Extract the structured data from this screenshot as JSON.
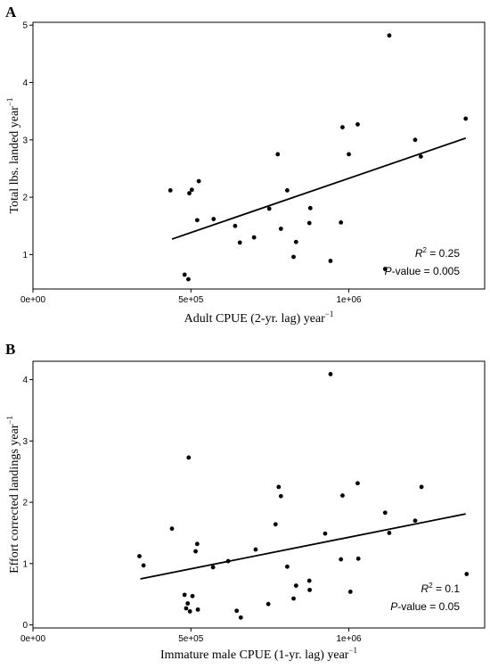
{
  "chart_data": [
    {
      "type": "scatter",
      "panel_label": "A",
      "xlabel": "Adult CPUE (2-yr. lag) year",
      "xlabel_sup": "−1",
      "ylabel": "Total lbs. landed year",
      "ylabel_sup": "−1",
      "xlim": [
        0,
        1430000
      ],
      "ylim": [
        0.4,
        5.05
      ],
      "x_ticks": [
        {
          "value": 0,
          "label": "0e+00"
        },
        {
          "value": 500000,
          "label": "5e+05"
        },
        {
          "value": 1000000,
          "label": "1e+06"
        }
      ],
      "y_ticks": [
        {
          "value": 1,
          "label": "1"
        },
        {
          "value": 2,
          "label": "2"
        },
        {
          "value": 3,
          "label": "3"
        },
        {
          "value": 4,
          "label": "4"
        },
        {
          "value": 5,
          "label": "5"
        }
      ],
      "annotation": {
        "r2_label": "R",
        "r2_sup": "2",
        "r2_value": " = 0.25",
        "p_label": "P",
        "p_value": "-value = 0.005"
      },
      "fit_line": {
        "x": [
          440000,
          1370000
        ],
        "y": [
          1.27,
          3.03
        ]
      },
      "points": [
        {
          "x": 435000,
          "y": 2.12
        },
        {
          "x": 480000,
          "y": 0.65
        },
        {
          "x": 492000,
          "y": 0.57
        },
        {
          "x": 495000,
          "y": 2.07
        },
        {
          "x": 503000,
          "y": 2.13
        },
        {
          "x": 520000,
          "y": 1.6
        },
        {
          "x": 525000,
          "y": 2.28
        },
        {
          "x": 572000,
          "y": 1.62
        },
        {
          "x": 640000,
          "y": 1.5
        },
        {
          "x": 655000,
          "y": 1.21
        },
        {
          "x": 700000,
          "y": 1.3
        },
        {
          "x": 748000,
          "y": 1.8
        },
        {
          "x": 775000,
          "y": 2.75
        },
        {
          "x": 785000,
          "y": 1.45
        },
        {
          "x": 805000,
          "y": 2.12
        },
        {
          "x": 825000,
          "y": 0.96
        },
        {
          "x": 833000,
          "y": 1.22
        },
        {
          "x": 875000,
          "y": 1.55
        },
        {
          "x": 878000,
          "y": 1.81
        },
        {
          "x": 942000,
          "y": 0.89
        },
        {
          "x": 975000,
          "y": 1.56
        },
        {
          "x": 980000,
          "y": 3.22
        },
        {
          "x": 1000000,
          "y": 2.75
        },
        {
          "x": 1028000,
          "y": 3.27
        },
        {
          "x": 1115000,
          "y": 0.75
        },
        {
          "x": 1128000,
          "y": 4.82
        },
        {
          "x": 1210000,
          "y": 3.0
        },
        {
          "x": 1228000,
          "y": 2.71
        },
        {
          "x": 1370000,
          "y": 3.37
        }
      ]
    },
    {
      "type": "scatter",
      "panel_label": "B",
      "xlabel": "Immature male CPUE (1-yr. lag) year",
      "xlabel_sup": "−1",
      "ylabel": "Effort corrected landings year",
      "ylabel_sup": "−1",
      "xlim": [
        0,
        1430000
      ],
      "ylim": [
        -0.05,
        4.3
      ],
      "x_ticks": [
        {
          "value": 0,
          "label": "0e+00"
        },
        {
          "value": 500000,
          "label": "5e+05"
        },
        {
          "value": 1000000,
          "label": "1e+06"
        }
      ],
      "y_ticks": [
        {
          "value": 0,
          "label": "0"
        },
        {
          "value": 1,
          "label": "1"
        },
        {
          "value": 2,
          "label": "2"
        },
        {
          "value": 3,
          "label": "3"
        },
        {
          "value": 4,
          "label": "4"
        }
      ],
      "annotation": {
        "r2_label": "R",
        "r2_sup": "2",
        "r2_value": " = 0.1",
        "p_label": "P",
        "p_value": "-value = 0.05"
      },
      "fit_line": {
        "x": [
          340000,
          1370000
        ],
        "y": [
          0.75,
          1.81
        ]
      },
      "points": [
        {
          "x": 337000,
          "y": 1.12
        },
        {
          "x": 350000,
          "y": 0.97
        },
        {
          "x": 440000,
          "y": 1.57
        },
        {
          "x": 480000,
          "y": 0.49
        },
        {
          "x": 485000,
          "y": 0.27
        },
        {
          "x": 490000,
          "y": 0.35
        },
        {
          "x": 493000,
          "y": 2.73
        },
        {
          "x": 497000,
          "y": 0.22
        },
        {
          "x": 505000,
          "y": 0.47
        },
        {
          "x": 515000,
          "y": 1.2
        },
        {
          "x": 520000,
          "y": 1.32
        },
        {
          "x": 522000,
          "y": 0.25
        },
        {
          "x": 570000,
          "y": 0.94
        },
        {
          "x": 618000,
          "y": 1.04
        },
        {
          "x": 645000,
          "y": 0.23
        },
        {
          "x": 658000,
          "y": 0.12
        },
        {
          "x": 705000,
          "y": 1.23
        },
        {
          "x": 745000,
          "y": 0.34
        },
        {
          "x": 768000,
          "y": 1.64
        },
        {
          "x": 778000,
          "y": 2.25
        },
        {
          "x": 785000,
          "y": 2.1
        },
        {
          "x": 805000,
          "y": 0.95
        },
        {
          "x": 825000,
          "y": 0.43
        },
        {
          "x": 833000,
          "y": 0.64
        },
        {
          "x": 875000,
          "y": 0.72
        },
        {
          "x": 876000,
          "y": 0.57
        },
        {
          "x": 925000,
          "y": 1.49
        },
        {
          "x": 942000,
          "y": 4.09
        },
        {
          "x": 975000,
          "y": 1.07
        },
        {
          "x": 980000,
          "y": 2.11
        },
        {
          "x": 1005000,
          "y": 0.54
        },
        {
          "x": 1028000,
          "y": 2.31
        },
        {
          "x": 1030000,
          "y": 1.08
        },
        {
          "x": 1115000,
          "y": 1.83
        },
        {
          "x": 1128000,
          "y": 1.5
        },
        {
          "x": 1210000,
          "y": 1.7
        },
        {
          "x": 1230000,
          "y": 2.25
        },
        {
          "x": 1373000,
          "y": 0.83
        }
      ]
    }
  ]
}
